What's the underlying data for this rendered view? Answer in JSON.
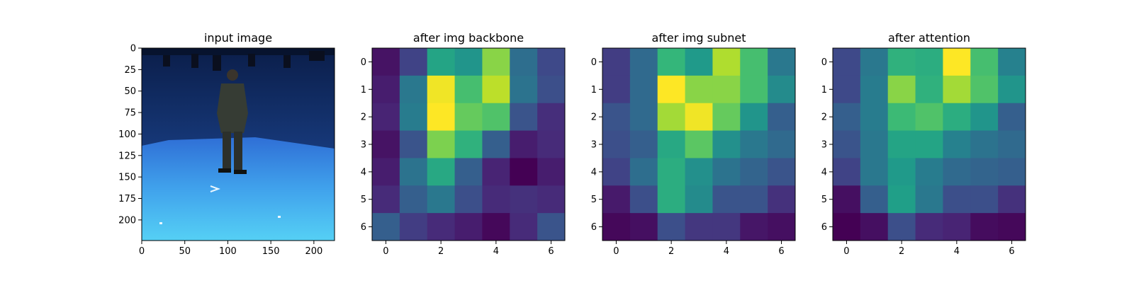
{
  "figure": {
    "background": "#ffffff"
  },
  "chart_data": [
    {
      "type": "image",
      "title": "input image",
      "xlabel": "",
      "ylabel": "",
      "xlim": [
        0,
        224
      ],
      "ylim": [
        224,
        0
      ],
      "xticks": [
        0,
        50,
        100,
        150,
        200
      ],
      "yticks": [
        0,
        25,
        50,
        75,
        100,
        125,
        150,
        175,
        200
      ],
      "content": "blue studio room with a person standing in the center",
      "colors": {
        "wall_dark": "#0b1e4a",
        "wall_mid": "#1b3f86",
        "floor_far": "#2f6fd6",
        "floor_near": "#55d0f5",
        "figure": "#2f3530"
      }
    },
    {
      "type": "heatmap",
      "title": "after img backbone",
      "xlabel": "",
      "ylabel": "",
      "colormap": "viridis",
      "xticks": [
        0,
        2,
        4,
        6
      ],
      "yticks": [
        0,
        1,
        2,
        3,
        4,
        5,
        6
      ],
      "values": [
        [
          0.05,
          0.2,
          0.58,
          0.52,
          0.82,
          0.36,
          0.22
        ],
        [
          0.08,
          0.4,
          0.98,
          0.7,
          0.9,
          0.38,
          0.24
        ],
        [
          0.1,
          0.42,
          1.0,
          0.76,
          0.72,
          0.26,
          0.13
        ],
        [
          0.05,
          0.26,
          0.8,
          0.64,
          0.3,
          0.08,
          0.12
        ],
        [
          0.08,
          0.38,
          0.6,
          0.3,
          0.1,
          0.0,
          0.08
        ],
        [
          0.12,
          0.3,
          0.4,
          0.24,
          0.12,
          0.14,
          0.12
        ],
        [
          0.3,
          0.18,
          0.12,
          0.08,
          0.02,
          0.12,
          0.26
        ]
      ]
    },
    {
      "type": "heatmap",
      "title": "after img subnet",
      "xlabel": "",
      "ylabel": "",
      "colormap": "viridis",
      "xticks": [
        0,
        2,
        4,
        6
      ],
      "yticks": [
        0,
        1,
        2,
        3,
        4,
        5,
        6
      ],
      "values": [
        [
          0.18,
          0.34,
          0.66,
          0.54,
          0.88,
          0.7,
          0.4
        ],
        [
          0.18,
          0.34,
          1.0,
          0.82,
          0.82,
          0.7,
          0.48
        ],
        [
          0.26,
          0.34,
          0.86,
          0.98,
          0.76,
          0.52,
          0.3
        ],
        [
          0.24,
          0.3,
          0.6,
          0.74,
          0.5,
          0.4,
          0.34
        ],
        [
          0.2,
          0.36,
          0.62,
          0.5,
          0.38,
          0.32,
          0.26
        ],
        [
          0.07,
          0.24,
          0.62,
          0.48,
          0.26,
          0.26,
          0.14
        ],
        [
          0.02,
          0.04,
          0.24,
          0.16,
          0.16,
          0.06,
          0.04
        ]
      ]
    },
    {
      "type": "heatmap",
      "title": "after attention",
      "xlabel": "",
      "ylabel": "",
      "colormap": "viridis",
      "xticks": [
        0,
        2,
        4,
        6
      ],
      "yticks": [
        0,
        1,
        2,
        3,
        4,
        5,
        6
      ],
      "values": [
        [
          0.22,
          0.4,
          0.64,
          0.62,
          1.0,
          0.7,
          0.44
        ],
        [
          0.22,
          0.42,
          0.82,
          0.64,
          0.86,
          0.72,
          0.52
        ],
        [
          0.3,
          0.42,
          0.68,
          0.72,
          0.62,
          0.52,
          0.3
        ],
        [
          0.26,
          0.4,
          0.58,
          0.58,
          0.44,
          0.38,
          0.34
        ],
        [
          0.2,
          0.4,
          0.54,
          0.42,
          0.34,
          0.32,
          0.3
        ],
        [
          0.04,
          0.3,
          0.56,
          0.4,
          0.24,
          0.24,
          0.14
        ],
        [
          0.0,
          0.04,
          0.24,
          0.12,
          0.1,
          0.03,
          0.02
        ]
      ]
    }
  ]
}
